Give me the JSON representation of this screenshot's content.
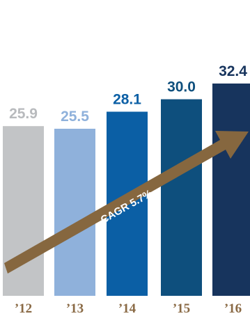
{
  "chart_data": {
    "type": "bar",
    "categories": [
      "’12",
      "’13",
      "’14",
      "’15",
      "’16"
    ],
    "values": [
      25.9,
      25.5,
      28.1,
      30.0,
      32.4
    ],
    "value_labels": [
      "25.9",
      "25.5",
      "28.1",
      "30.0",
      "32.4"
    ],
    "bar_colors": [
      "#c2c4c6",
      "#8fb1db",
      "#0b5fa5",
      "#0e4f7d",
      "#17345d"
    ],
    "label_colors": [
      "#b8babd",
      "#8fb1db",
      "#0b5fa5",
      "#0e4f7d",
      "#17345d"
    ],
    "annotation": {
      "text": "CAGR 5.7%",
      "color": "#86673f"
    },
    "title": "",
    "xlabel": "",
    "ylabel": ""
  }
}
